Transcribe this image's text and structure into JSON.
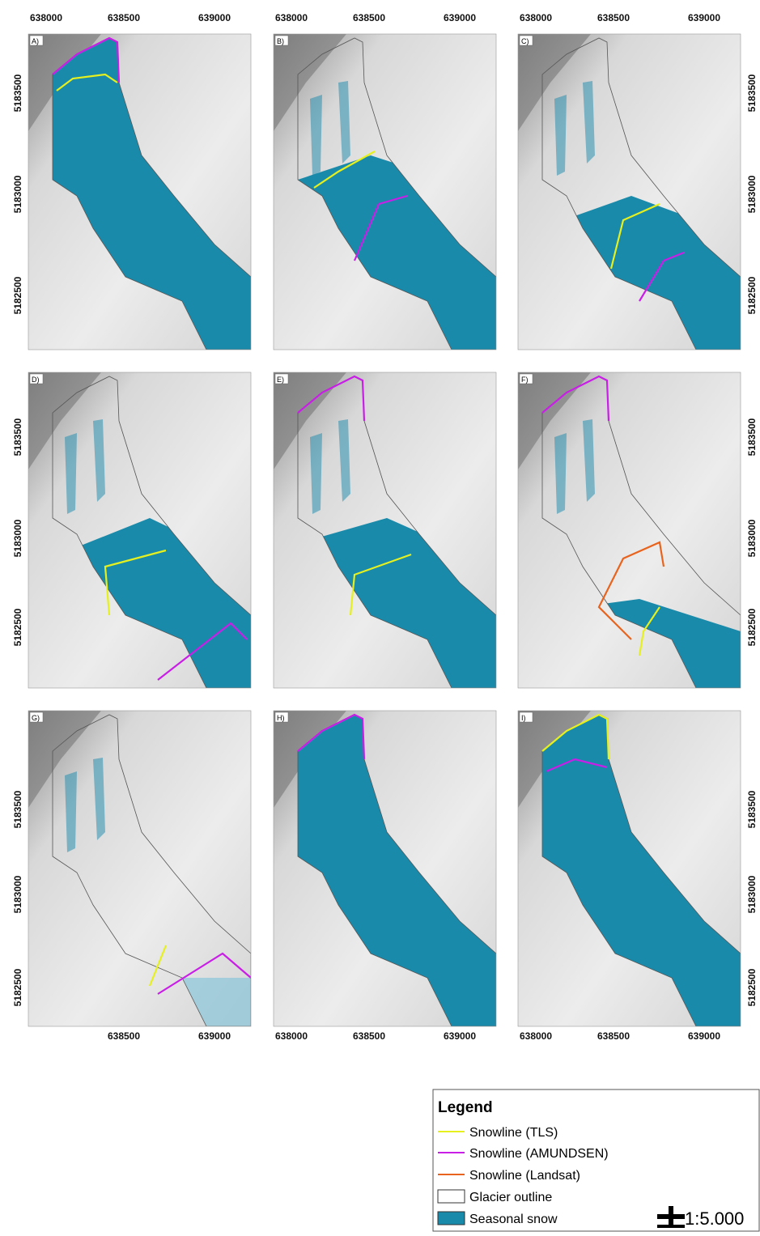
{
  "panels": [
    {
      "label": "A)",
      "top_ticks": [
        638000,
        638500,
        639000
      ],
      "left_ticks": [
        5183500,
        5183000,
        5182500
      ]
    },
    {
      "label": "B)",
      "top_ticks": [
        638000,
        638500,
        639000
      ]
    },
    {
      "label": "C)",
      "top_ticks": [
        638000,
        638500,
        639000
      ],
      "right_ticks": [
        5183500,
        5183000,
        5182500
      ]
    },
    {
      "label": "D)",
      "left_ticks": [
        5183500,
        5183000,
        5182500
      ]
    },
    {
      "label": "E)"
    },
    {
      "label": "F)",
      "right_ticks": [
        5183500,
        5183000,
        5182500
      ]
    },
    {
      "label": "G)",
      "left_ticks": [
        5183500,
        5183000,
        5182500
      ],
      "bottom_ticks": [
        null,
        638500,
        639000
      ]
    },
    {
      "label": "H)",
      "bottom_ticks": [
        638000,
        638500,
        639000
      ]
    },
    {
      "label": "I)",
      "right_ticks": [
        5183500,
        5183000,
        5182500
      ],
      "bottom_ticks": [
        638000,
        638500,
        639000
      ]
    }
  ],
  "legend": {
    "title": "Legend",
    "items": [
      "Snowline (TLS)",
      "Snowline (AMUNDSEN)",
      "Snowline (Landsat)",
      "Glacier outline",
      "Seasonal snow"
    ]
  },
  "scale": "1:5.000"
}
